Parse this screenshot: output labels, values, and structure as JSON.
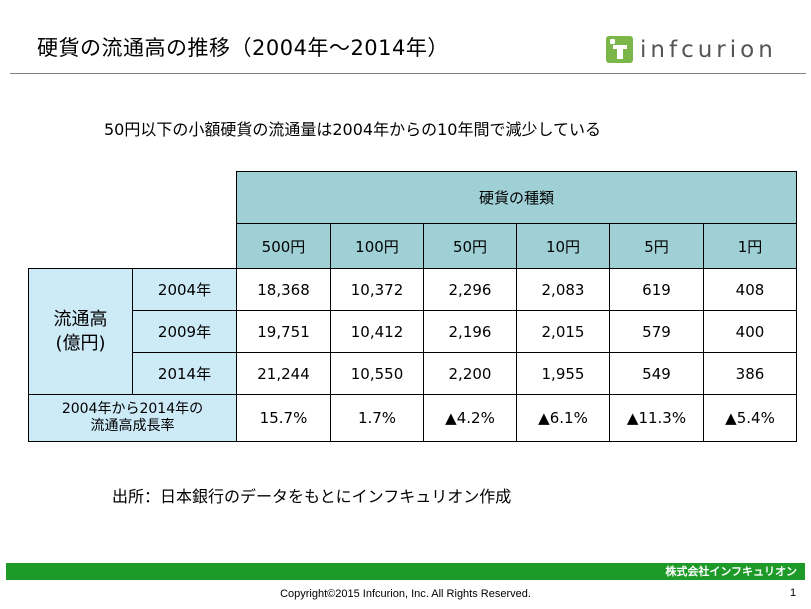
{
  "title": "硬貨の流通高の推移（2004年～2014年）",
  "logo": {
    "text": "infcurion",
    "icon": "infcurion-logo-mark",
    "brand_color": "#7ab648"
  },
  "headline": "50円以下の小額硬貨の流通量は2004年からの10年間で減少している",
  "table": {
    "group_header": "硬貨の種類",
    "coins": [
      "500円",
      "100円",
      "50円",
      "10円",
      "5円",
      "1円"
    ],
    "row_group_label": "流通高\n(億円)",
    "rows": [
      {
        "year": "2004年",
        "values": [
          "18,368",
          "10,372",
          "2,296",
          "2,083",
          "619",
          "408"
        ]
      },
      {
        "year": "2009年",
        "values": [
          "19,751",
          "10,412",
          "2,196",
          "2,015",
          "579",
          "400"
        ]
      },
      {
        "year": "2014年",
        "values": [
          "21,244",
          "10,550",
          "2,200",
          "1,955",
          "549",
          "386"
        ]
      }
    ],
    "growth_label": "2004年から2014年の\n流通高成長率",
    "growth_values": [
      "15.7%",
      "1.7%",
      "▲4.2%",
      "▲6.1%",
      "▲11.3%",
      "▲5.4%"
    ],
    "header_color": "#9ed0d5",
    "rowhead_color": "#cdeaf7"
  },
  "source": "出所：日本銀行のデータをもとにインフキュリオン作成",
  "footer": {
    "company": "株式会社インフキュリオン",
    "copyright": "Copyright©2015 Infcurion, Inc. All Rights Reserved.",
    "page": "1",
    "bar_color": "#1e9a28"
  }
}
